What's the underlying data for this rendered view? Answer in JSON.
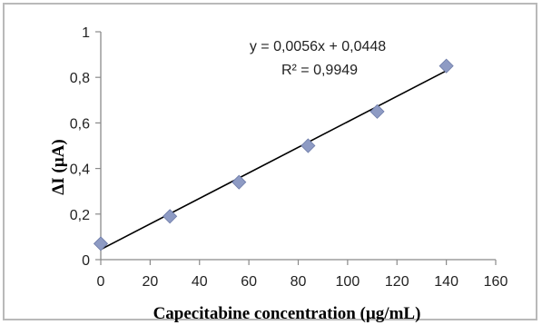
{
  "chart_data": {
    "type": "scatter",
    "title": "",
    "xlabel": "Capecitabine concentration (µg/mL)",
    "ylabel": "ΔI (µA)",
    "xlim": [
      0,
      160
    ],
    "ylim": [
      0,
      1
    ],
    "xticks": [
      "0",
      "20",
      "40",
      "60",
      "80",
      "100",
      "120",
      "140",
      "160"
    ],
    "yticks": [
      "0",
      "0,2",
      "0,4",
      "0,6",
      "0,8",
      "1"
    ],
    "grid": false,
    "legend": "none",
    "series": [
      {
        "x": [
          0,
          28,
          56,
          84,
          112,
          140
        ],
        "y": [
          0.07,
          0.19,
          0.34,
          0.5,
          0.65,
          0.85
        ],
        "marker": "diamond"
      }
    ],
    "trendline": {
      "type": "linear",
      "slope": 0.0056,
      "intercept": 0.0448,
      "x_range": [
        0,
        140
      ]
    },
    "annotations": {
      "equation": "y = 0,0056x + 0,0448",
      "r_squared": "R² = 0,9949"
    },
    "colors": {
      "marker": "#8e9bc4",
      "marker_edge": "#6d7ba8",
      "trendline": "#000000",
      "axis": "#8a8a8a",
      "frame": "#b9b9b9"
    }
  }
}
